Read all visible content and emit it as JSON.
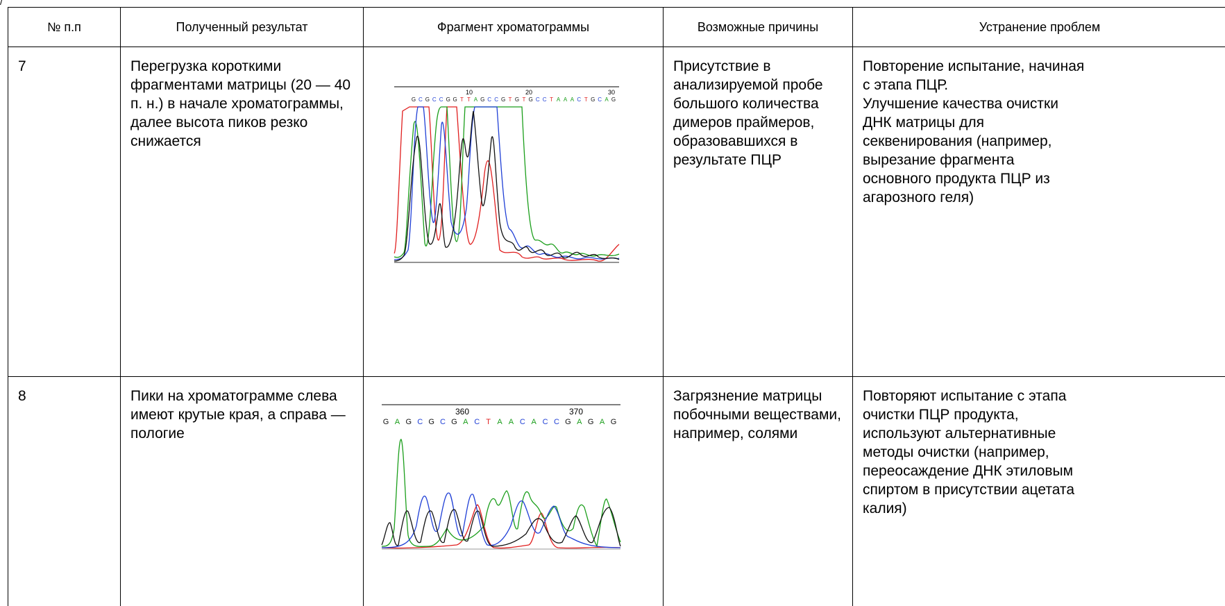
{
  "top_mark": "/",
  "table": {
    "headers": [
      "№ п.п",
      "Полученный результат",
      "Фрагмент хроматограммы",
      "Возможные причины",
      "Устранение проблем"
    ],
    "rows": [
      {
        "number": "7",
        "result": "Перегрузка короткими\nфрагментами матрицы (20 — 40\nп. н.) в начале хроматограммы,\nдалее высота пиков резко\nснижается",
        "causes": "Присутствие в\nанализируемой пробе\nбольшого количества\nдимеров праймеров,\nобразовавшихся в\nрезультате ПЦР",
        "solution": "Повторение испытание, начиная\nс этапа ПЦР.\nУлучшение качества очистки\nДНК матрицы для\nсеквенирования (например,\nвырезание фрагмента\nосновного продукта ПЦР из\nагарозного геля)",
        "chromatogram": {
          "tick_labels": [
            "10",
            "20",
            "30"
          ],
          "sequence": [
            "G",
            "C",
            "G",
            "C",
            "C",
            "G",
            "G",
            "T",
            "T",
            "A",
            "G",
            "C",
            "C",
            "G",
            "T",
            "G",
            "T",
            "G",
            "C",
            "C",
            "T",
            "A",
            "A",
            "A",
            "C",
            "T",
            "G",
            "C",
            "A",
            "G"
          ],
          "base_colors": {
            "A": "#1a9e1a",
            "C": "#1f3fd6",
            "G": "#111111",
            "T": "#e01e1e"
          }
        }
      },
      {
        "number": "8",
        "result": "Пики на хроматограмме слева\nимеют крутые края, а справа —\nпологие",
        "causes": "Загрязнение матрицы\nпобочными веществами,\nнапример, солями",
        "solution": "Повторяют испытание с этапа\nочистки ПЦР продукта,\nиспользуют альтернативные\nметоды очистки (например,\nпереосаждение ДНК этиловым\nспиртом в присутствии ацетата\nкалия)",
        "chromatogram": {
          "tick_labels": [
            "360",
            "370"
          ],
          "sequence": [
            "G",
            "A",
            "G",
            "C",
            "G",
            "C",
            "G",
            "A",
            "C",
            "T",
            "A",
            "A",
            "C",
            "A",
            "C",
            "C",
            "G",
            "A",
            "G",
            "A",
            "G"
          ],
          "base_colors": {
            "A": "#1a9e1a",
            "C": "#1f3fd6",
            "G": "#111111",
            "T": "#e01e1e"
          }
        }
      }
    ]
  }
}
